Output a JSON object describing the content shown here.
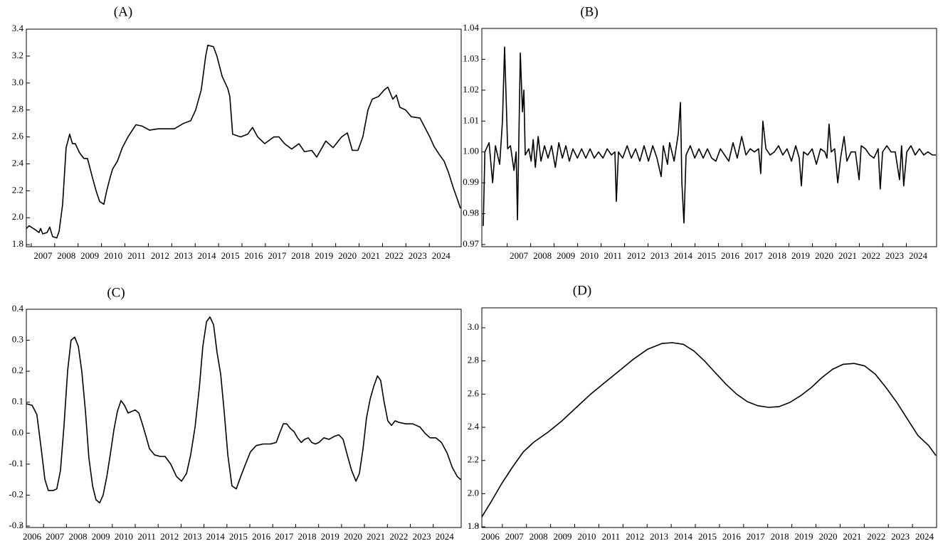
{
  "chart_data": [
    {
      "type": "line",
      "title": "(A)",
      "color": "#000000",
      "xlim": [
        2006.79,
        2025.36
      ],
      "ylim": [
        1.785,
        3.4
      ],
      "yticks": [
        1.8,
        {
          "value": 2,
          "label": "2.0"
        },
        2.2,
        2.4,
        2.6,
        2.8,
        {
          "value": 3,
          "label": "3.0"
        },
        3.2,
        3.4
      ],
      "xticks": [
        2007,
        2008,
        2009,
        2010,
        2011,
        2012,
        2013,
        2014,
        2015,
        2016,
        2017,
        2018,
        2019,
        2020,
        2021,
        2022,
        2023,
        2024
      ],
      "x": [
        2006.79,
        2006.91,
        2007.18,
        2007.33,
        2007.4,
        2007.49,
        2007.67,
        2007.79,
        2007.91,
        2008.09,
        2008.19,
        2008.34,
        2008.49,
        2008.64,
        2008.76,
        2008.88,
        2009.07,
        2009.25,
        2009.4,
        2009.61,
        2009.77,
        2009.92,
        2010.1,
        2010.22,
        2010.37,
        2010.47,
        2010.68,
        2010.89,
        2011.13,
        2011.32,
        2011.47,
        2011.74,
        2012.05,
        2012.41,
        2012.74,
        2013.11,
        2013.5,
        2013.81,
        2014.02,
        2014.26,
        2014.45,
        2014.54,
        2014.78,
        2014.93,
        2015.15,
        2015.39,
        2015.48,
        2015.6,
        2015.94,
        2016.24,
        2016.45,
        2016.67,
        2016.97,
        2017.36,
        2017.58,
        2017.82,
        2018.12,
        2018.43,
        2018.67,
        2018.98,
        2019.19,
        2019.58,
        2019.89,
        2020.25,
        2020.5,
        2020.71,
        2020.95,
        2021.16,
        2021.38,
        2021.56,
        2021.83,
        2022.08,
        2022.23,
        2022.44,
        2022.59,
        2022.74,
        2022.99,
        2023.23,
        2023.6,
        2023.78,
        2024.02,
        2024.2,
        2024.42,
        2024.63,
        2024.81,
        2025.03,
        2025.21,
        2025.33
      ],
      "values": [
        1.92,
        1.94,
        1.91,
        1.89,
        1.92,
        1.88,
        1.89,
        1.93,
        1.86,
        1.85,
        1.9,
        2.1,
        2.52,
        2.62,
        2.55,
        2.55,
        2.48,
        2.44,
        2.44,
        2.3,
        2.2,
        2.12,
        2.1,
        2.2,
        2.3,
        2.36,
        2.42,
        2.52,
        2.6,
        2.65,
        2.69,
        2.68,
        2.65,
        2.66,
        2.66,
        2.66,
        2.7,
        2.72,
        2.8,
        2.95,
        3.2,
        3.28,
        3.27,
        3.2,
        3.05,
        2.96,
        2.9,
        2.62,
        2.6,
        2.62,
        2.67,
        2.6,
        2.55,
        2.6,
        2.6,
        2.55,
        2.51,
        2.55,
        2.49,
        2.5,
        2.45,
        2.57,
        2.52,
        2.6,
        2.63,
        2.5,
        2.5,
        2.6,
        2.8,
        2.88,
        2.9,
        2.95,
        2.97,
        2.88,
        2.91,
        2.82,
        2.8,
        2.75,
        2.74,
        2.68,
        2.6,
        2.53,
        2.47,
        2.42,
        2.34,
        2.22,
        2.13,
        2.07
      ]
    },
    {
      "type": "line",
      "title": "(B)",
      "color": "#000000",
      "xlim": [
        2005.92,
        2025.29
      ],
      "ylim": [
        0.9693,
        1.04
      ],
      "yticks": [
        0.97,
        0.98,
        0.99,
        {
          "value": 1,
          "label": "1.00"
        },
        1.01,
        1.02,
        1.03,
        1.04
      ],
      "xticks": [
        2007,
        2008,
        2009,
        2010,
        2011,
        2012,
        2013,
        2014,
        2015,
        2016,
        2017,
        2018,
        2019,
        2020,
        2021,
        2022,
        2023,
        2024
      ],
      "x": [
        2005.98,
        2006.05,
        2006.23,
        2006.38,
        2006.5,
        2006.68,
        2006.8,
        2006.89,
        2007.02,
        2007.14,
        2007.29,
        2007.38,
        2007.44,
        2007.56,
        2007.65,
        2007.71,
        2007.77,
        2007.92,
        2008.02,
        2008.11,
        2008.2,
        2008.32,
        2008.44,
        2008.59,
        2008.74,
        2008.89,
        2009.05,
        2009.2,
        2009.35,
        2009.5,
        2009.65,
        2009.8,
        2009.99,
        2010.17,
        2010.35,
        2010.53,
        2010.71,
        2010.89,
        2011.08,
        2011.26,
        2011.44,
        2011.59,
        2011.65,
        2011.74,
        2011.92,
        2012.11,
        2012.29,
        2012.47,
        2012.65,
        2012.83,
        2013.02,
        2013.2,
        2013.38,
        2013.56,
        2013.65,
        2013.83,
        2013.92,
        2014.11,
        2014.29,
        2014.38,
        2014.44,
        2014.53,
        2014.62,
        2014.8,
        2014.99,
        2015.17,
        2015.35,
        2015.53,
        2015.71,
        2015.89,
        2016.08,
        2016.26,
        2016.44,
        2016.62,
        2016.8,
        2016.99,
        2017.17,
        2017.35,
        2017.53,
        2017.71,
        2017.8,
        2017.89,
        2018.02,
        2018.2,
        2018.38,
        2018.56,
        2018.74,
        2018.92,
        2019.11,
        2019.29,
        2019.44,
        2019.53,
        2019.62,
        2019.8,
        2019.99,
        2020.17,
        2020.35,
        2020.53,
        2020.62,
        2020.71,
        2020.8,
        2020.95,
        2021.08,
        2021.2,
        2021.35,
        2021.47,
        2021.65,
        2021.83,
        2021.99,
        2022.08,
        2022.26,
        2022.44,
        2022.62,
        2022.8,
        2022.89,
        2022.99,
        2023.17,
        2023.35,
        2023.53,
        2023.71,
        2023.8,
        2023.89,
        2024.02,
        2024.2,
        2024.38,
        2024.56,
        2024.74,
        2024.92,
        2025.11,
        2025.26
      ],
      "values": [
        0.976,
        1.0,
        1.003,
        0.99,
        1.002,
        0.996,
        1.01,
        1.034,
        1.001,
        1.002,
        0.994,
        1.0,
        0.978,
        1.032,
        1.013,
        1.02,
        0.999,
        1.001,
        0.997,
        1.004,
        0.995,
        1.005,
        0.997,
        1.002,
        0.998,
        1.002,
        0.995,
        1.003,
        0.998,
        1.002,
        0.997,
        1.001,
        0.998,
        1.001,
        0.998,
        1.001,
        0.998,
        1.0,
        0.998,
        1.001,
        0.999,
        1.0,
        0.984,
        1.0,
        0.998,
        1.002,
        0.998,
        1.001,
        0.997,
        1.002,
        0.997,
        1.002,
        0.998,
        0.992,
        1.002,
        0.996,
        1.003,
        0.997,
        1.006,
        1.016,
        0.99,
        0.977,
        0.999,
        1.002,
        0.998,
        1.001,
        0.998,
        1.001,
        0.998,
        0.997,
        1.001,
        0.999,
        0.997,
        1.003,
        0.998,
        1.005,
        0.999,
        1.001,
        1.0,
        1.001,
        0.993,
        1.01,
        1.001,
        0.999,
        1.0,
        1.002,
        0.999,
        1.001,
        0.997,
        1.002,
        0.998,
        0.989,
        1.0,
        0.999,
        1.001,
        0.996,
        1.001,
        1.0,
        0.998,
        1.009,
        1.0,
        1.001,
        0.99,
        0.998,
        1.005,
        0.997,
        1.0,
        1.0,
        0.991,
        1.002,
        1.001,
        0.999,
        0.998,
        1.001,
        0.988,
        1.0,
        1.002,
        1.0,
        1.0,
        0.991,
        1.002,
        0.989,
        1.0,
        1.002,
        0.999,
        1.001,
        0.999,
        1.0,
        0.999,
        0.999
      ]
    },
    {
      "type": "line",
      "title": "(C)",
      "color": "#000000",
      "xlim": [
        2006.25,
        2025.22
      ],
      "ylim": [
        -0.3046,
        0.4
      ],
      "yticks": [
        -0.3,
        -0.2,
        -0.1,
        {
          "value": 0,
          "label": "0.0"
        },
        0.1,
        0.2,
        0.3,
        0.4
      ],
      "xticks": [
        2006,
        2007,
        2008,
        2009,
        2010,
        2011,
        2012,
        2013,
        2014,
        2015,
        2016,
        2017,
        2018,
        2019,
        2020,
        2021,
        2022,
        2023,
        2024
      ],
      "x": [
        2006.25,
        2006.5,
        2006.71,
        2006.9,
        2007.06,
        2007.21,
        2007.43,
        2007.58,
        2007.74,
        2007.89,
        2008.05,
        2008.2,
        2008.36,
        2008.52,
        2008.67,
        2008.83,
        2008.98,
        2009.14,
        2009.29,
        2009.45,
        2009.6,
        2009.76,
        2009.91,
        2010.07,
        2010.22,
        2010.38,
        2010.53,
        2010.69,
        2010.84,
        2011.0,
        2011.16,
        2011.31,
        2011.47,
        2011.62,
        2011.84,
        2012.09,
        2012.3,
        2012.55,
        2012.8,
        2013.02,
        2013.24,
        2013.42,
        2013.61,
        2013.8,
        2013.95,
        2014.11,
        2014.26,
        2014.42,
        2014.57,
        2014.73,
        2014.88,
        2015.04,
        2015.22,
        2015.41,
        2015.6,
        2015.81,
        2016.03,
        2016.28,
        2016.59,
        2016.9,
        2017.15,
        2017.3,
        2017.46,
        2017.61,
        2017.77,
        2017.93,
        2018.08,
        2018.24,
        2018.39,
        2018.55,
        2018.7,
        2018.86,
        2019.01,
        2019.23,
        2019.45,
        2019.7,
        2019.88,
        2020.07,
        2020.25,
        2020.44,
        2020.63,
        2020.78,
        2020.94,
        2021.09,
        2021.25,
        2021.4,
        2021.57,
        2021.71,
        2021.86,
        2022.02,
        2022.18,
        2022.34,
        2022.49,
        2022.8,
        2023.11,
        2023.42,
        2023.64,
        2023.86,
        2024.11,
        2024.36,
        2024.61,
        2024.83,
        2025.05,
        2025.2
      ],
      "values": [
        0.095,
        0.09,
        0.06,
        -0.05,
        -0.15,
        -0.185,
        -0.185,
        -0.18,
        -0.12,
        0.02,
        0.2,
        0.3,
        0.31,
        0.28,
        0.2,
        0.07,
        -0.08,
        -0.17,
        -0.215,
        -0.225,
        -0.2,
        -0.14,
        -0.07,
        0.01,
        0.07,
        0.105,
        0.09,
        0.065,
        0.07,
        0.075,
        0.065,
        0.03,
        -0.01,
        -0.05,
        -0.07,
        -0.075,
        -0.075,
        -0.1,
        -0.14,
        -0.155,
        -0.13,
        -0.07,
        0.02,
        0.15,
        0.28,
        0.36,
        0.375,
        0.35,
        0.26,
        0.19,
        0.07,
        -0.07,
        -0.17,
        -0.18,
        -0.14,
        -0.1,
        -0.06,
        -0.04,
        -0.035,
        -0.035,
        -0.03,
        0.0,
        0.03,
        0.03,
        0.015,
        0.005,
        -0.015,
        -0.03,
        -0.02,
        -0.015,
        -0.03,
        -0.035,
        -0.03,
        -0.015,
        -0.02,
        -0.01,
        -0.005,
        -0.02,
        -0.07,
        -0.12,
        -0.155,
        -0.13,
        -0.05,
        0.05,
        0.11,
        0.15,
        0.185,
        0.17,
        0.1,
        0.04,
        0.025,
        0.04,
        0.035,
        0.03,
        0.03,
        0.02,
        0.0,
        -0.015,
        -0.015,
        -0.03,
        -0.065,
        -0.11,
        -0.14,
        -0.15
      ]
    },
    {
      "type": "line",
      "title": "(D)",
      "color": "#000000",
      "xlim": [
        2006.15,
        2025.0
      ],
      "ylim": [
        1.796,
        3.12
      ],
      "yticks": [
        1.8,
        {
          "value": 2,
          "label": "2.0"
        },
        2.2,
        2.4,
        2.6,
        2.8,
        {
          "value": 3,
          "label": "3.0"
        }
      ],
      "xticks": [
        2006,
        2007,
        2008,
        2009,
        2010,
        2011,
        2012,
        2013,
        2014,
        2015,
        2016,
        2017,
        2018,
        2019,
        2020,
        2021,
        2022,
        2023,
        2024
      ],
      "x": [
        2006.15,
        2006.53,
        2006.97,
        2007.42,
        2007.86,
        2008.3,
        2008.89,
        2009.48,
        2010.07,
        2010.66,
        2011.25,
        2011.84,
        2012.43,
        2013.02,
        2013.61,
        2014.05,
        2014.5,
        2014.94,
        2015.38,
        2015.82,
        2016.27,
        2016.71,
        2017.15,
        2017.59,
        2018.04,
        2018.48,
        2018.92,
        2019.36,
        2019.81,
        2020.25,
        2020.69,
        2021.13,
        2021.58,
        2022.02,
        2022.46,
        2022.9,
        2023.35,
        2023.79,
        2024.23,
        2024.67,
        2024.97
      ],
      "values": [
        1.86,
        1.95,
        2.06,
        2.16,
        2.25,
        2.31,
        2.37,
        2.44,
        2.52,
        2.6,
        2.67,
        2.74,
        2.81,
        2.87,
        2.905,
        2.91,
        2.9,
        2.86,
        2.8,
        2.73,
        2.66,
        2.6,
        2.555,
        2.53,
        2.52,
        2.525,
        2.55,
        2.59,
        2.64,
        2.7,
        2.75,
        2.78,
        2.785,
        2.77,
        2.72,
        2.64,
        2.55,
        2.45,
        2.35,
        2.29,
        2.23
      ]
    }
  ]
}
